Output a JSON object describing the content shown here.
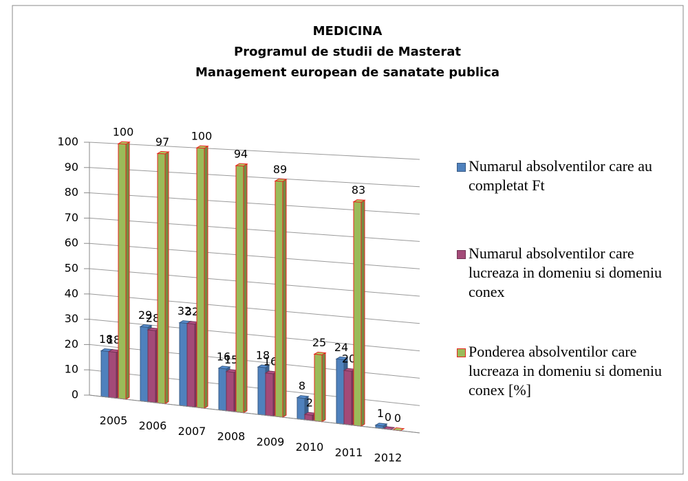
{
  "chart_data": {
    "type": "bar3d",
    "title": [
      "MEDICINA",
      "Programul de studii de Masterat",
      "Management european de sanatate publica"
    ],
    "categories": [
      "2005",
      "2006",
      "2007",
      "2008",
      "2009",
      "2010",
      "2011",
      "2012"
    ],
    "series": [
      {
        "name": "Numarul absolventilor care au completat Ft",
        "color": "#4f81bd",
        "values": [
          18,
          29,
          32,
          16,
          18,
          8,
          24,
          1
        ]
      },
      {
        "name": "Numarul absolventilor care  lucreaza in domeniu si domeniu conex",
        "color": "#a34a78",
        "values": [
          18,
          28,
          32,
          15,
          16,
          2,
          20,
          0
        ]
      },
      {
        "name": "Ponderea absolventilor care  lucreaza in domeniu si domeniu conex [%]",
        "color": "#9bbb59",
        "values": [
          100,
          97,
          100,
          94,
          89,
          25,
          83,
          0
        ]
      }
    ],
    "ylim": [
      0,
      100
    ],
    "yticks": [
      0,
      10,
      20,
      30,
      40,
      50,
      60,
      70,
      80,
      90,
      100
    ],
    "grid": true,
    "legend": "right"
  }
}
